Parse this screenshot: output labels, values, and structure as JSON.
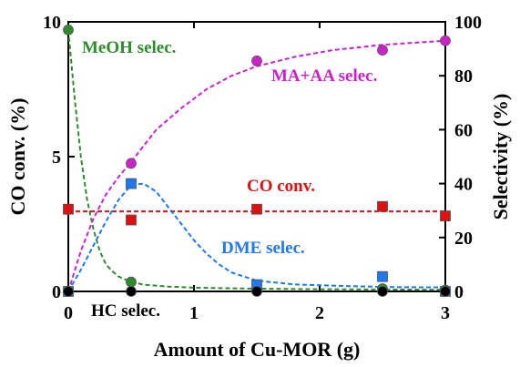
{
  "chart_data": {
    "type": "scatter",
    "xlabel": "Amount of Cu-MOR (g)",
    "ylabel_left": "CO conv. (%)",
    "ylabel_right": "Selectivity (%)",
    "xlim": [
      0,
      3
    ],
    "ylim_left": [
      0,
      10
    ],
    "ylim_right": [
      0,
      100
    ],
    "x_ticks": [
      "0",
      "1",
      "2",
      "3"
    ],
    "y_left_ticks": [
      "0",
      "5",
      "10"
    ],
    "y_right_ticks": [
      "0",
      "20",
      "40",
      "60",
      "80",
      "100"
    ],
    "grid": false,
    "legend": "none",
    "series": [
      {
        "name": "MeOH selec.",
        "axis": "right",
        "color": "#2e8b2e",
        "marker": "circle",
        "x": [
          0,
          0.5,
          1.5,
          2.5,
          3.0
        ],
        "y": [
          97,
          3.5,
          1,
          1,
          0.5
        ],
        "curve": [
          [
            0,
            97
          ],
          [
            0.05,
            72
          ],
          [
            0.1,
            50
          ],
          [
            0.15,
            34
          ],
          [
            0.2,
            23
          ],
          [
            0.25,
            15
          ],
          [
            0.3,
            10
          ],
          [
            0.35,
            7.5
          ],
          [
            0.4,
            5.5
          ],
          [
            0.5,
            3.5
          ],
          [
            0.6,
            2.5
          ],
          [
            0.8,
            1.8
          ],
          [
            1.0,
            1.4
          ],
          [
            1.5,
            1.0
          ],
          [
            2.0,
            0.8
          ],
          [
            2.5,
            0.7
          ],
          [
            3.0,
            0.6
          ]
        ]
      },
      {
        "name": "MA+AA selec.",
        "axis": "right",
        "color": "#cc22cc",
        "marker": "circle",
        "x": [
          0,
          0.5,
          1.5,
          2.5,
          3.0
        ],
        "y": [
          0,
          47.5,
          85.5,
          89.5,
          93
        ],
        "curve": [
          [
            0,
            0
          ],
          [
            0.1,
            15
          ],
          [
            0.2,
            27
          ],
          [
            0.3,
            36
          ],
          [
            0.4,
            42.5
          ],
          [
            0.5,
            48
          ],
          [
            0.7,
            60
          ],
          [
            0.9,
            68
          ],
          [
            1.1,
            75
          ],
          [
            1.3,
            80
          ],
          [
            1.5,
            83.5
          ],
          [
            1.8,
            87
          ],
          [
            2.1,
            89.5
          ],
          [
            2.5,
            91.5
          ],
          [
            3.0,
            93
          ]
        ]
      },
      {
        "name": "CO conv.",
        "axis": "left",
        "color": "#dd1111",
        "marker": "square",
        "x": [
          0,
          0.5,
          1.5,
          2.5,
          3.0
        ],
        "y": [
          3.05,
          2.65,
          3.05,
          3.15,
          2.8
        ],
        "curve": [
          [
            0,
            2.97
          ],
          [
            3.0,
            2.97
          ]
        ]
      },
      {
        "name": "DME selec.",
        "axis": "right",
        "color": "#1f78ee",
        "marker": "square",
        "x": [
          0,
          0.5,
          1.5,
          2.5,
          3.0
        ],
        "y": [
          0,
          40,
          2.5,
          5.5,
          0
        ],
        "curve": [
          [
            0,
            0
          ],
          [
            0.1,
            8
          ],
          [
            0.2,
            17
          ],
          [
            0.3,
            26
          ],
          [
            0.4,
            34
          ],
          [
            0.5,
            39.5
          ],
          [
            0.6,
            40
          ],
          [
            0.7,
            37
          ],
          [
            0.8,
            31
          ],
          [
            0.9,
            25
          ],
          [
            1.0,
            19
          ],
          [
            1.1,
            14
          ],
          [
            1.2,
            10
          ],
          [
            1.3,
            7
          ],
          [
            1.5,
            4
          ],
          [
            1.8,
            2.6
          ],
          [
            2.2,
            2
          ],
          [
            2.6,
            1.6
          ],
          [
            3.0,
            1.5
          ]
        ]
      },
      {
        "name": "HC selec.",
        "axis": "right",
        "color": "#000000",
        "marker": "circle",
        "x": [
          0,
          0.5,
          1.5,
          2.5,
          3.0
        ],
        "y": [
          0,
          0,
          0,
          0,
          0
        ],
        "curve": [
          [
            0,
            0
          ],
          [
            3.0,
            0
          ]
        ]
      }
    ],
    "annotations": [
      {
        "text": "MeOH selec.",
        "color": "#2e8b2e"
      },
      {
        "text": "MA+AA selec.",
        "color": "#cc22cc"
      },
      {
        "text": "CO conv.",
        "color": "#dd1111"
      },
      {
        "text": "DME selec.",
        "color": "#1f78ee"
      },
      {
        "text": "HC selec.",
        "color": "#000000"
      }
    ]
  }
}
